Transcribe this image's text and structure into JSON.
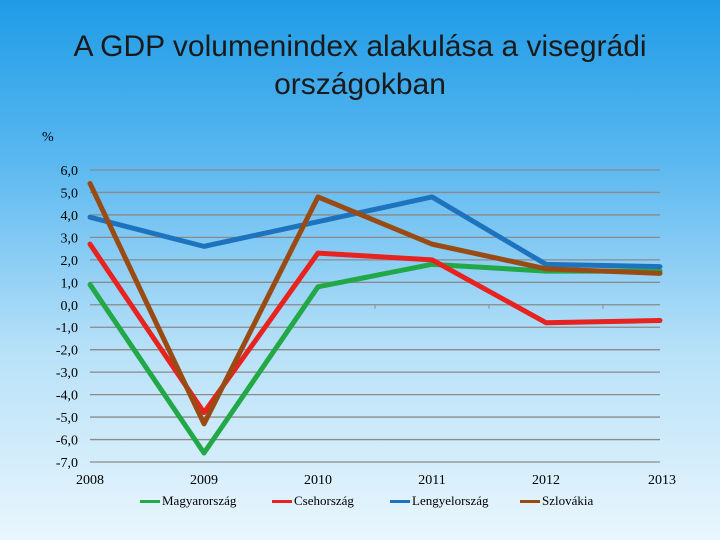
{
  "chart_data": {
    "type": "line",
    "title": "A GDP volumenindex alakulása a visegrádi országokban",
    "title_lines": [
      "A GDP volumenindex alakulása a visegrádi",
      "országokban"
    ],
    "ylabel": "%",
    "xlabel": "",
    "x": [
      "2008",
      "2009",
      "2010",
      "2011",
      "2012",
      "2013"
    ],
    "ylim": [
      -7,
      6
    ],
    "yticks": [
      "6,0",
      "5,0",
      "4,0",
      "3,0",
      "2,0",
      "1,0",
      "0,0",
      "-1,0",
      "-2,0",
      "-3,0",
      "-4,0",
      "-5,0",
      "-6,0",
      "-7,0"
    ],
    "ytick_values": [
      6,
      5,
      4,
      3,
      2,
      1,
      0,
      -1,
      -2,
      -3,
      -4,
      -5,
      -6,
      -7
    ],
    "grid": true,
    "legend_position": "bottom",
    "series": [
      {
        "name": "Magyarország",
        "color": "#22a847",
        "values": [
          0.9,
          -6.6,
          0.8,
          1.8,
          1.5,
          1.5
        ]
      },
      {
        "name": "Csehország",
        "color": "#e8221f",
        "values": [
          2.7,
          -4.8,
          2.3,
          2.0,
          -0.8,
          -0.7
        ]
      },
      {
        "name": "Lengyelország",
        "color": "#1e73be",
        "values": [
          3.9,
          2.6,
          3.7,
          4.8,
          1.8,
          1.7
        ]
      },
      {
        "name": "Szlovákia",
        "color": "#9a4a13",
        "values": [
          5.4,
          -5.3,
          4.8,
          2.7,
          1.6,
          1.4
        ]
      }
    ]
  }
}
